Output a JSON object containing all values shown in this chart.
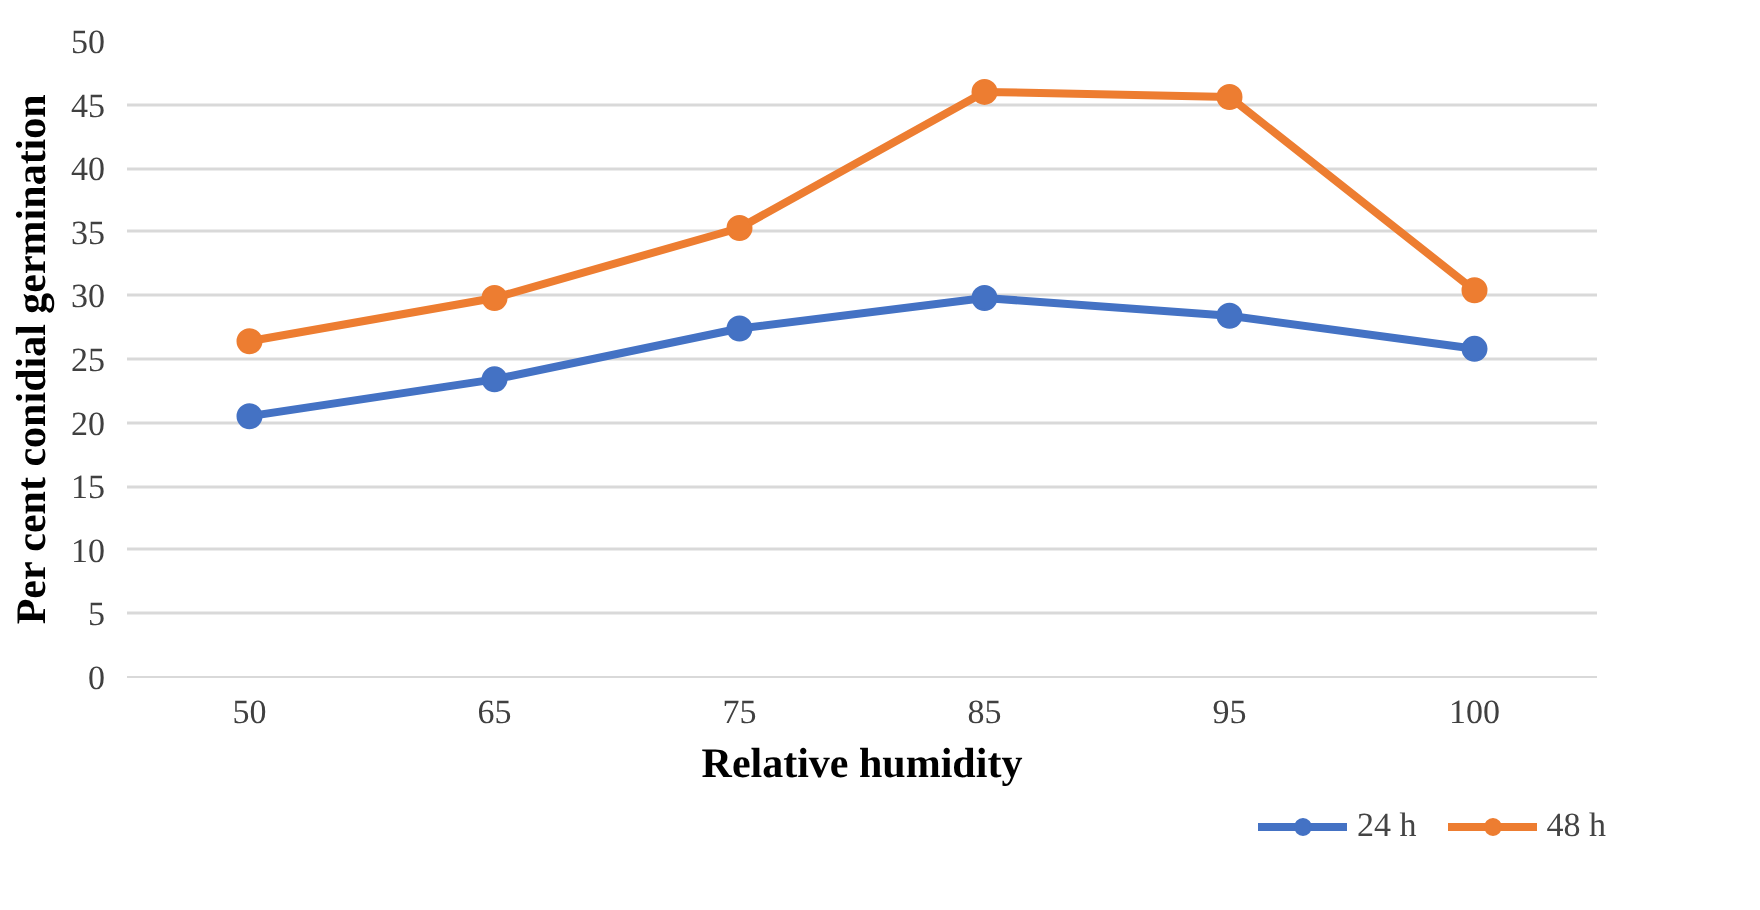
{
  "chart_data": {
    "type": "line",
    "xlabel": "Relative humidity",
    "ylabel": "Per cent conidial germination",
    "categories": [
      "50",
      "65",
      "75",
      "85",
      "95",
      "100"
    ],
    "series": [
      {
        "name": "24 h",
        "color": "#4472c4",
        "values": [
          20.5,
          23.4,
          27.4,
          29.8,
          28.4,
          25.8
        ]
      },
      {
        "name": "48 h",
        "color": "#ed7d31",
        "values": [
          26.4,
          29.8,
          35.3,
          46.0,
          45.6,
          30.4
        ]
      }
    ],
    "ylim": [
      0,
      50
    ],
    "yticks": [
      0,
      5,
      10,
      15,
      20,
      25,
      30,
      35,
      40,
      45,
      50
    ],
    "grid": "y",
    "legend": "bottom right",
    "marker": "circle",
    "line_style": "solid"
  }
}
